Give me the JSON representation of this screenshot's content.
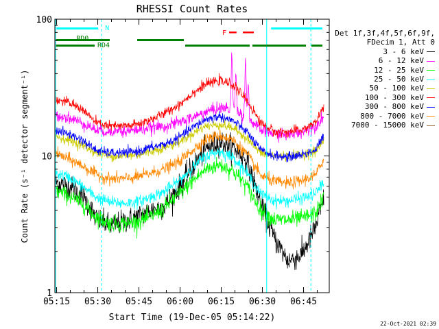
{
  "title": "RHESSI Count Rates",
  "xlabel": "Start Time (19-Dec-05 05:14:22)",
  "ylabel": "Count Rate (s⁻¹ detector segment⁻¹)",
  "legend_header": [
    "Det 1f,3f,4f,5f,6f,9f,",
    "FDecim 1, Att 0"
  ],
  "footer_stamp": "22-Oct-2021 02:39",
  "colors": {
    "3-6": "#000000",
    "6-12": "#ff00ff",
    "12-25": "#00ff00",
    "25-50": "#00ffff",
    "50-100": "#cccc00",
    "100-300": "#ff0000",
    "300-800": "#0000ff",
    "800-7000": "#ff8800",
    "7000-15000": "#996633",
    "flag_cyan": "#00ffff",
    "flag_green": "#008000",
    "flag_red": "#ff0000"
  },
  "flags": {
    "N": "N",
    "RD0": "RD0",
    "RD4": "RD4",
    "F": "F"
  },
  "chart_data": {
    "type": "line",
    "title": "RHESSI Count Rates",
    "xlabel": "Start Time (19-Dec-05 05:14:22)",
    "ylabel": "Count Rate (s⁻¹ detector segment⁻¹)",
    "x_ticks": [
      "05:15",
      "05:30",
      "05:45",
      "06:00",
      "06:15",
      "06:30",
      "06:45"
    ],
    "x_tick_minutes": [
      0.63,
      15.63,
      30.63,
      45.63,
      60.63,
      75.63,
      90.63
    ],
    "xlim_minutes": [
      0,
      100
    ],
    "y_ticks": [
      "1",
      "10",
      "100"
    ],
    "yscale": "log",
    "ylim": [
      1,
      100
    ],
    "legend": "right",
    "grid": false,
    "x_minutes": [
      0,
      5,
      10,
      15,
      20,
      25,
      30,
      35,
      40,
      45,
      50,
      55,
      60,
      65,
      70,
      75,
      80,
      85,
      90,
      95,
      98
    ],
    "series": [
      {
        "name": "3 - 6 keV",
        "key": "3-6",
        "noise": 0.1,
        "values": [
          6.5,
          6.0,
          5.2,
          3.5,
          3.1,
          3.3,
          3.6,
          4.0,
          4.3,
          5.8,
          8.2,
          11.2,
          12.8,
          11.6,
          9.2,
          4.5,
          2.5,
          1.7,
          1.9,
          3.0,
          4.8
        ]
      },
      {
        "name": "6 - 12 keV",
        "key": "6-12",
        "noise": 0.05,
        "values": [
          20.0,
          19.0,
          17.5,
          15.5,
          15.0,
          15.0,
          15.5,
          16.0,
          16.5,
          17.5,
          19.0,
          21.0,
          22.5,
          22.0,
          19.0,
          15.5,
          14.5,
          14.2,
          15.0,
          16.5,
          19.5
        ],
        "spikes": [
          {
            "at": 21.5,
            "val": 15.8
          },
          {
            "at": 23.5,
            "val": 16.5
          },
          {
            "at": 64.5,
            "val": 55
          },
          {
            "at": 66,
            "val": 40
          },
          {
            "at": 69.5,
            "val": 53
          },
          {
            "at": 70.5,
            "val": 33
          }
        ]
      },
      {
        "name": "12 - 25 keV",
        "key": "12-25",
        "noise": 0.07,
        "values": [
          5.6,
          5.1,
          4.5,
          3.6,
          3.2,
          3.2,
          3.3,
          3.6,
          4.2,
          5.2,
          6.5,
          8.0,
          8.6,
          7.8,
          6.0,
          4.0,
          3.4,
          3.4,
          3.5,
          3.8,
          5.0
        ]
      },
      {
        "name": "25 - 50 keV",
        "key": "25-50",
        "noise": 0.05,
        "values": [
          7.5,
          7.0,
          6.0,
          5.0,
          4.6,
          4.5,
          4.6,
          5.0,
          5.5,
          6.5,
          8.2,
          10.0,
          10.8,
          9.8,
          7.5,
          5.3,
          4.7,
          4.7,
          4.9,
          5.3,
          6.5
        ]
      },
      {
        "name": "50 - 100 keV",
        "key": "50-100",
        "noise": 0.04,
        "values": [
          14.0,
          13.0,
          12.0,
          10.5,
          10.0,
          10.0,
          10.2,
          10.8,
          11.5,
          12.5,
          14.5,
          16.5,
          17.0,
          16.0,
          13.5,
          10.5,
          10.0,
          10.0,
          10.2,
          10.8,
          13.0
        ]
      },
      {
        "name": "100 - 300 keV",
        "key": "100-300",
        "noise": 0.04,
        "values": [
          26.0,
          24.5,
          22.0,
          17.5,
          16.5,
          16.5,
          17.0,
          18.5,
          20.5,
          23.5,
          28.5,
          33.5,
          35.5,
          33.0,
          25.5,
          17.5,
          15.0,
          15.0,
          15.5,
          17.5,
          23.0
        ]
      },
      {
        "name": "300 - 800 keV",
        "key": "300-800",
        "noise": 0.04,
        "values": [
          15.5,
          14.5,
          13.0,
          11.0,
          10.5,
          10.5,
          10.8,
          11.5,
          12.2,
          13.5,
          16.0,
          18.5,
          19.5,
          18.0,
          15.0,
          11.0,
          10.0,
          9.8,
          10.2,
          11.0,
          14.0
        ]
      },
      {
        "name": "800 - 7000 keV",
        "key": "800-7000",
        "noise": 0.05,
        "values": [
          10.5,
          9.5,
          8.5,
          7.3,
          6.8,
          6.8,
          7.0,
          7.5,
          8.0,
          9.0,
          11.0,
          13.2,
          14.2,
          13.0,
          10.3,
          7.2,
          6.5,
          6.3,
          6.6,
          7.2,
          9.5
        ]
      },
      {
        "name": "7000 - 15000 keV",
        "key": "7000-15000",
        "noise": 0,
        "values": []
      }
    ],
    "vlines": [
      {
        "minute": 0.3,
        "style": "solid",
        "color": "#00ffff"
      },
      {
        "minute": 17.0,
        "style": "dashed",
        "color": "#00ffff"
      },
      {
        "minute": 77.2,
        "style": "solid",
        "color": "#00ffff"
      },
      {
        "minute": 93.3,
        "style": "dashed",
        "color": "#00ffff"
      }
    ]
  }
}
